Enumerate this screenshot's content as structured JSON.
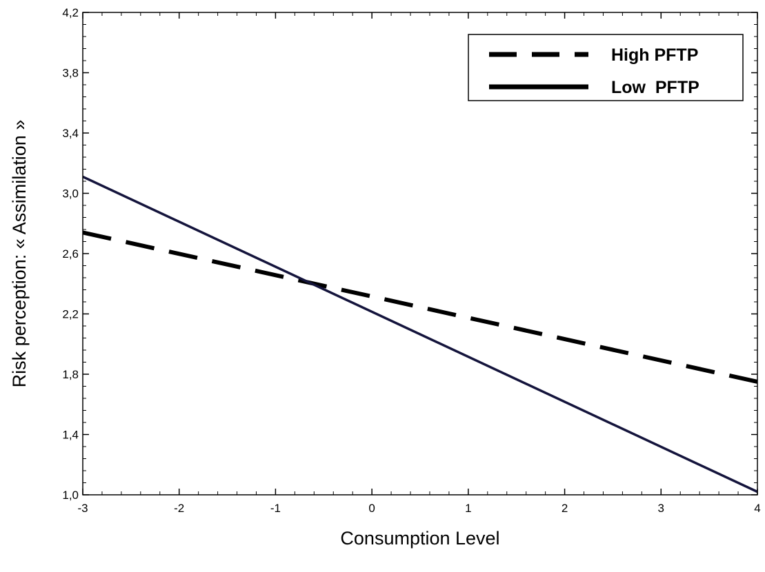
{
  "chart_data": {
    "type": "line",
    "xlabel": "Consumption Level",
    "ylabel": "Risk perception: « Assimilation »",
    "xlim": [
      -3,
      4
    ],
    "ylim": [
      1.0,
      4.2
    ],
    "x_ticks": [
      -3,
      -2,
      -1,
      0,
      1,
      2,
      3,
      4
    ],
    "x_tick_labels": [
      "-3",
      "-2",
      "-1",
      "0",
      "1",
      "2",
      "3",
      "4"
    ],
    "y_ticks": [
      1.0,
      1.4,
      1.8,
      2.2,
      2.6,
      3.0,
      3.4,
      3.8,
      4.2
    ],
    "y_tick_labels": [
      "1,0",
      "1,4",
      "1,8",
      "2,2",
      "2,6",
      "3,0",
      "3,4",
      "3,8",
      "4,2"
    ],
    "grid": false,
    "legend_position": "top-right",
    "series": [
      {
        "name": "High PFTP",
        "style": "dashed",
        "color": "#000000",
        "x": [
          -3,
          4
        ],
        "y": [
          2.74,
          1.75
        ]
      },
      {
        "name": "Low  PFTP",
        "style": "solid",
        "color": "#14143c",
        "x": [
          -3,
          4
        ],
        "y": [
          3.11,
          1.02
        ]
      }
    ]
  }
}
